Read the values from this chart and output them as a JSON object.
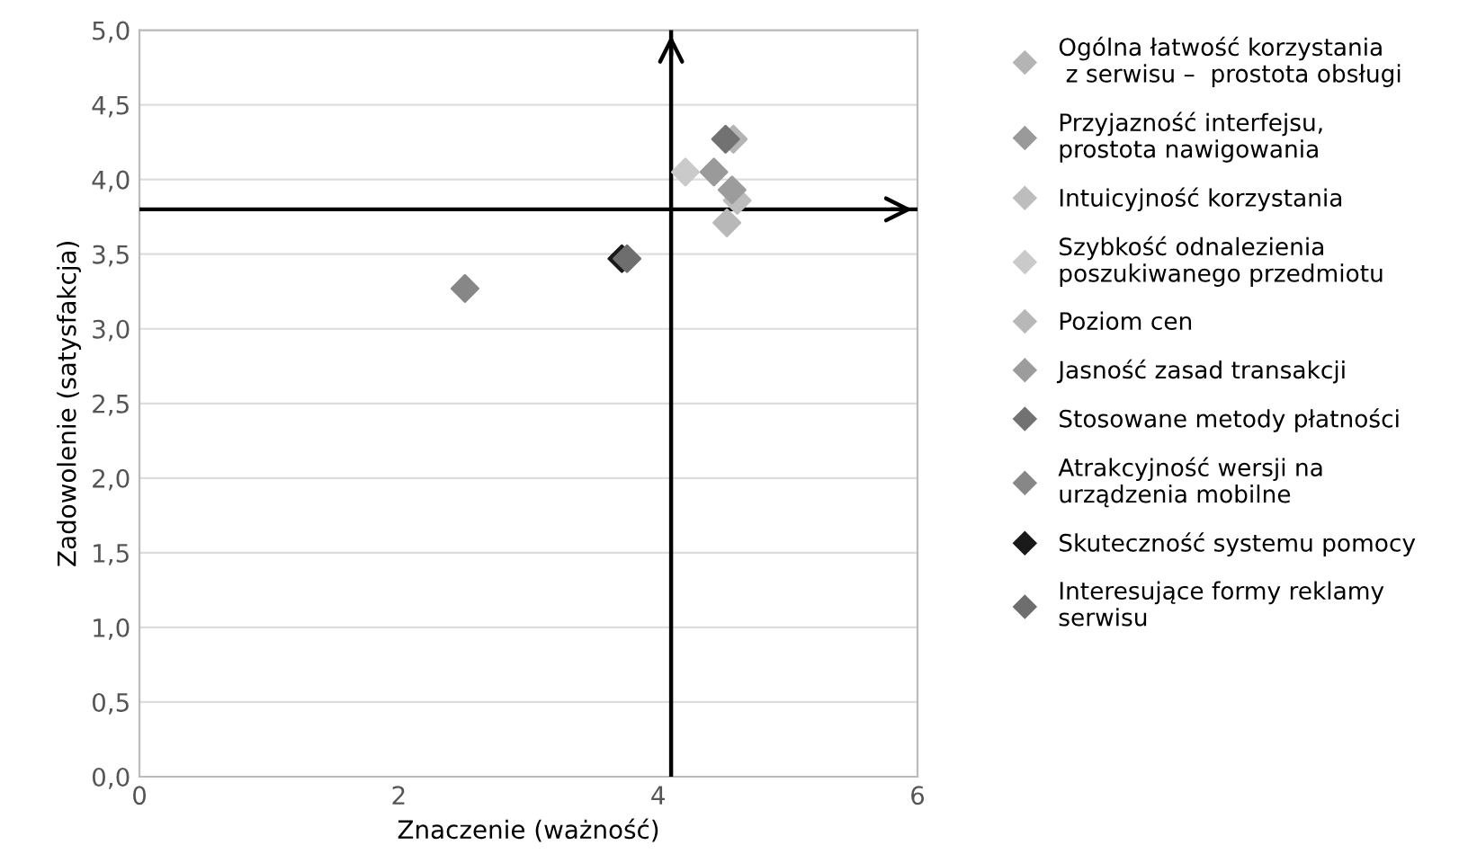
{
  "chart_data": {
    "type": "scatter",
    "xlabel": "Znaczenie (ważność)",
    "ylabel": "Zadowolenie (satysfakcja)",
    "xlim": [
      0,
      6
    ],
    "ylim": [
      0,
      5
    ],
    "xticks": [
      0,
      2,
      4,
      6
    ],
    "yticks": [
      {
        "value": 0,
        "label": "0,0"
      },
      {
        "value": 0.5,
        "label": "0,5"
      },
      {
        "value": 1,
        "label": "1,0"
      },
      {
        "value": 1.5,
        "label": "1,5"
      },
      {
        "value": 2,
        "label": "2,0"
      },
      {
        "value": 2.5,
        "label": "2,5"
      },
      {
        "value": 3,
        "label": "3,0"
      },
      {
        "value": 3.5,
        "label": "3,5"
      },
      {
        "value": 4,
        "label": "4,0"
      },
      {
        "value": 4.5,
        "label": "4,5"
      },
      {
        "value": 5,
        "label": "5,0"
      }
    ],
    "grid": "y",
    "legend": "right",
    "marker": "diamond",
    "ref_lines": [
      {
        "axis": "x",
        "value": 4.1,
        "color": "#000000"
      },
      {
        "axis": "y",
        "value": 3.8,
        "color": "#000000"
      }
    ],
    "series": [
      {
        "name": "Ogólna łatwość korzystania\n z serwisu –  prostota obsługi",
        "color": "#b4b4b4",
        "x": [
          4.58
        ],
        "values": [
          4.27
        ]
      },
      {
        "name": "Przyjazność interfejsu,\nprostota nawigowania",
        "color": "#9a9a9a",
        "x": [
          4.43
        ],
        "values": [
          4.05
        ]
      },
      {
        "name": "Intuicyjność korzystania",
        "color": "#bdbdbd",
        "x": [
          4.61
        ],
        "values": [
          3.86
        ]
      },
      {
        "name": "Szybkość odnalezienia\nposzukiwanego przedmiotu",
        "color": "#cacaca",
        "x": [
          4.21
        ],
        "values": [
          4.05
        ]
      },
      {
        "name": "Poziom cen",
        "color": "#b8b8b8",
        "x": [
          4.53
        ],
        "values": [
          3.71
        ]
      },
      {
        "name": "Jasność zasad transakcji",
        "color": "#9c9c9c",
        "x": [
          4.57
        ],
        "values": [
          3.93
        ]
      },
      {
        "name": "Stosowane metody płatności",
        "color": "#727272",
        "x": [
          4.52
        ],
        "values": [
          4.27
        ]
      },
      {
        "name": "Atrakcyjność wersji na\nurządzenia mobilne",
        "color": "#878787",
        "x": [
          2.51
        ],
        "values": [
          3.27
        ]
      },
      {
        "name": "Skuteczność systemu pomocy",
        "color": "#1a1a1a",
        "x": [
          3.72
        ],
        "values": [
          3.47
        ]
      },
      {
        "name": "Interesujące formy reklamy\nserwisu",
        "color": "#6e6e6e",
        "x": [
          3.76
        ],
        "values": [
          3.47
        ]
      }
    ]
  }
}
